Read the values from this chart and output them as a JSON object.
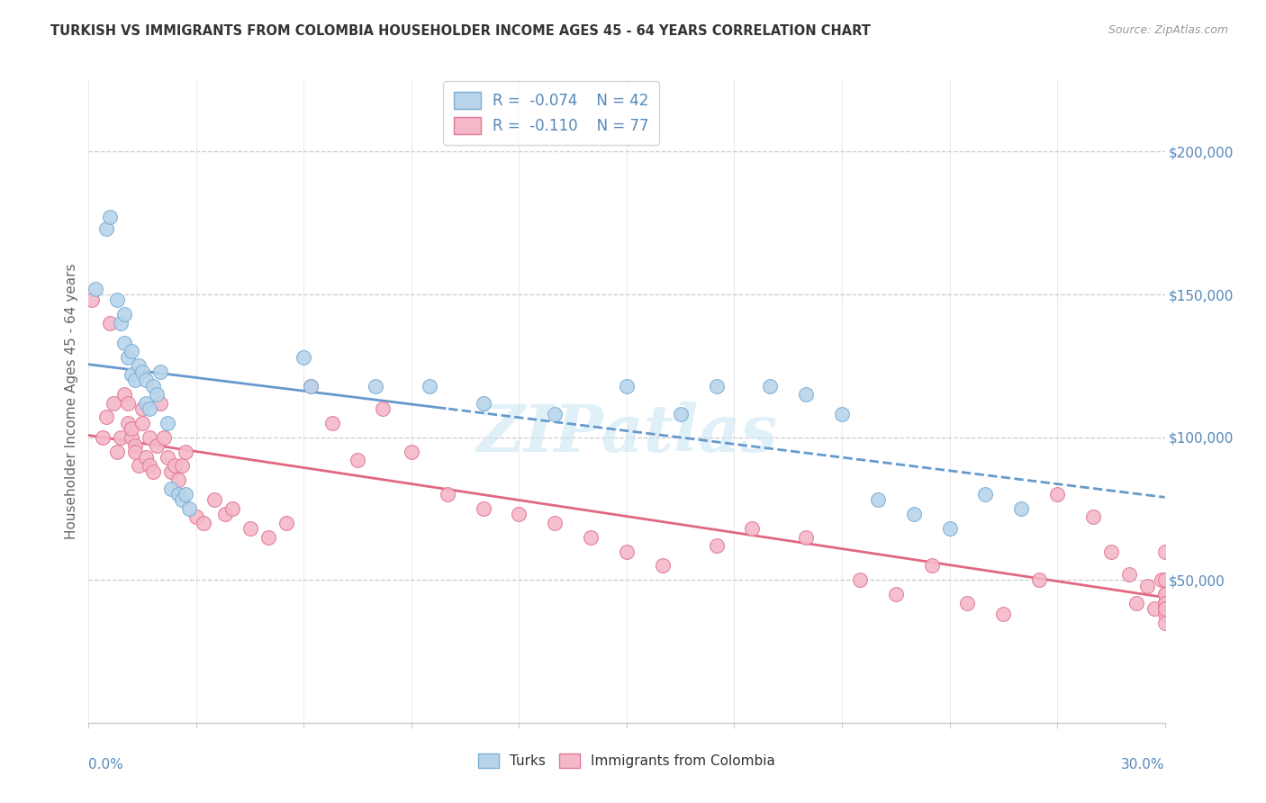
{
  "title": "TURKISH VS IMMIGRANTS FROM COLOMBIA HOUSEHOLDER INCOME AGES 45 - 64 YEARS CORRELATION CHART",
  "source": "Source: ZipAtlas.com",
  "ylabel": "Householder Income Ages 45 - 64 years",
  "xmin": 0.0,
  "xmax": 0.3,
  "ymin": 0,
  "ymax": 225000,
  "right_yticks": [
    50000,
    100000,
    150000,
    200000
  ],
  "right_ytick_labels": [
    "$50,000",
    "$100,000",
    "$150,000",
    "$200,000"
  ],
  "legend_R1": "-0.074",
  "legend_N1": "42",
  "legend_R2": "-0.110",
  "legend_N2": "77",
  "color_turks_fill": "#b8d4ea",
  "color_turks_edge": "#7bafd4",
  "color_colombia_fill": "#f5b8c8",
  "color_colombia_edge": "#e07898",
  "color_line_turks": "#6699cc",
  "color_line_colombia": "#e06880",
  "color_text_blue": "#5588bb",
  "color_title": "#333333",
  "color_source": "#999999",
  "color_grid": "#cccccc",
  "watermark_text": "ZIPatlas",
  "turks_x": [
    0.002,
    0.005,
    0.006,
    0.008,
    0.009,
    0.01,
    0.01,
    0.011,
    0.012,
    0.012,
    0.013,
    0.014,
    0.015,
    0.016,
    0.016,
    0.017,
    0.018,
    0.019,
    0.02,
    0.022,
    0.023,
    0.025,
    0.026,
    0.027,
    0.028,
    0.06,
    0.062,
    0.08,
    0.095,
    0.11,
    0.13,
    0.15,
    0.165,
    0.175,
    0.19,
    0.2,
    0.21,
    0.22,
    0.23,
    0.24,
    0.25,
    0.26
  ],
  "turks_y": [
    152000,
    173000,
    177000,
    148000,
    140000,
    143000,
    133000,
    128000,
    130000,
    122000,
    120000,
    125000,
    123000,
    120000,
    112000,
    110000,
    118000,
    115000,
    123000,
    105000,
    82000,
    80000,
    78000,
    80000,
    75000,
    128000,
    118000,
    118000,
    118000,
    112000,
    108000,
    118000,
    108000,
    118000,
    118000,
    115000,
    108000,
    78000,
    73000,
    68000,
    80000,
    75000
  ],
  "colombia_x": [
    0.001,
    0.004,
    0.005,
    0.006,
    0.007,
    0.008,
    0.009,
    0.01,
    0.011,
    0.011,
    0.012,
    0.012,
    0.013,
    0.013,
    0.014,
    0.015,
    0.015,
    0.016,
    0.017,
    0.017,
    0.018,
    0.019,
    0.02,
    0.021,
    0.022,
    0.023,
    0.024,
    0.025,
    0.026,
    0.027,
    0.03,
    0.032,
    0.035,
    0.038,
    0.04,
    0.045,
    0.05,
    0.055,
    0.062,
    0.068,
    0.075,
    0.082,
    0.09,
    0.1,
    0.11,
    0.12,
    0.13,
    0.14,
    0.15,
    0.16,
    0.175,
    0.185,
    0.2,
    0.215,
    0.225,
    0.235,
    0.245,
    0.255,
    0.265,
    0.27,
    0.28,
    0.285,
    0.29,
    0.292,
    0.295,
    0.297,
    0.299,
    0.3,
    0.3,
    0.3,
    0.3,
    0.3,
    0.3,
    0.3,
    0.3,
    0.3,
    0.3
  ],
  "colombia_y": [
    148000,
    100000,
    107000,
    140000,
    112000,
    95000,
    100000,
    115000,
    105000,
    112000,
    100000,
    103000,
    97000,
    95000,
    90000,
    110000,
    105000,
    93000,
    100000,
    90000,
    88000,
    97000,
    112000,
    100000,
    93000,
    88000,
    90000,
    85000,
    90000,
    95000,
    72000,
    70000,
    78000,
    73000,
    75000,
    68000,
    65000,
    70000,
    118000,
    105000,
    92000,
    110000,
    95000,
    80000,
    75000,
    73000,
    70000,
    65000,
    60000,
    55000,
    62000,
    68000,
    65000,
    50000,
    45000,
    55000,
    42000,
    38000,
    50000,
    80000,
    72000,
    60000,
    52000,
    42000,
    48000,
    40000,
    50000,
    60000,
    50000,
    45000,
    42000,
    40000,
    38000,
    35000,
    45000,
    42000,
    40000
  ]
}
